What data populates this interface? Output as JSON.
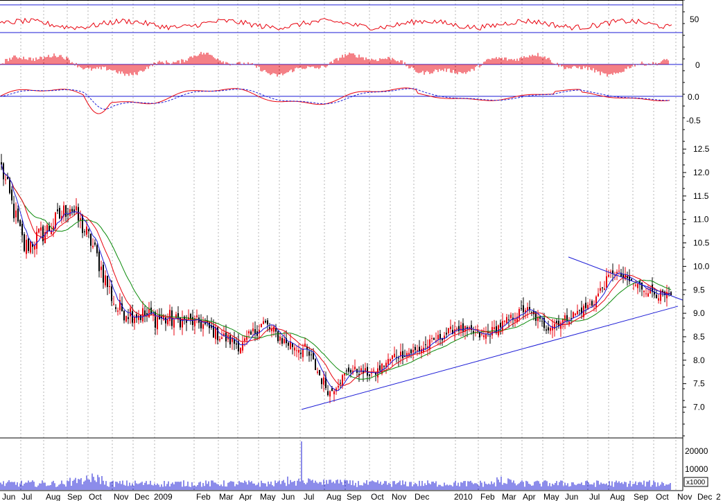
{
  "chart_data": {
    "type": "candlestick",
    "grid": true,
    "colors": {
      "up_candle": "#e8000c",
      "down_candle": "#000000",
      "ma_short": "#1a1ad6",
      "ma_mid": "#e8000c",
      "ma_long": "#0a8a0a",
      "trendline": "#1a1ad6",
      "rsi_line": "#e8000c",
      "histogram": "#e8000c",
      "macd_line": "#e8000c",
      "signal_line": "#1a1ad6",
      "volume": "#1a1ad6",
      "grid": "#b4b4b4"
    },
    "x_labels": [
      "Jun",
      "Jul",
      "Aug",
      "Sep",
      "Oct",
      "Nov",
      "Dec",
      "2009",
      "Feb",
      "Mar",
      "Apr",
      "May",
      "Jun",
      "Jul",
      "Aug",
      "Sep",
      "Oct",
      "Nov",
      "Dec",
      "2010",
      "Feb",
      "Mar",
      "Apr",
      "May",
      "Jun",
      "Jul",
      "Aug",
      "Sep",
      "Oct",
      "Nov",
      "Dec",
      "2"
    ],
    "rsi_panel": {
      "tick_labels": [
        "50"
      ],
      "range": [
        0,
        100
      ],
      "guide_levels": [
        30,
        70
      ]
    },
    "histogram_panel": {
      "tick_labels": [
        "0"
      ]
    },
    "macd_panel": {
      "tick_labels": [
        "0.0",
        "-0.5"
      ],
      "range": [
        -0.7,
        0.3
      ]
    },
    "price_panel": {
      "tick_labels": [
        "12.5",
        "12.0",
        "11.5",
        "11.0",
        "10.5",
        "10.0",
        "9.5",
        "9.0",
        "8.5",
        "8.0",
        "7.5",
        "7.0"
      ],
      "ylim": [
        6.6,
        12.8
      ],
      "key_closes": [
        {
          "label": "Jun",
          "close": 12.1
        },
        {
          "label": "Jul",
          "close": 10.4
        },
        {
          "label": "Aug",
          "close": 10.8
        },
        {
          "label": "Sep",
          "close": 11.3
        },
        {
          "label": "Oct",
          "close": 10.5
        },
        {
          "label": "Nov",
          "close": 9.1
        },
        {
          "label": "Dec",
          "close": 9.0
        },
        {
          "label": "2009",
          "close": 8.9
        },
        {
          "label": "Feb",
          "close": 8.8
        },
        {
          "label": "Mar",
          "close": 8.5
        },
        {
          "label": "Apr",
          "close": 8.3
        },
        {
          "label": "May",
          "close": 8.8
        },
        {
          "label": "Jun",
          "close": 8.4
        },
        {
          "label": "Jul",
          "close": 8.2
        },
        {
          "label": "Aug",
          "close": 7.3
        },
        {
          "label": "Sep",
          "close": 7.8
        },
        {
          "label": "Oct",
          "close": 7.7
        },
        {
          "label": "Nov",
          "close": 8.1
        },
        {
          "label": "Dec",
          "close": 8.2
        },
        {
          "label": "2010",
          "close": 8.7
        },
        {
          "label": "Feb",
          "close": 8.5
        },
        {
          "label": "Mar",
          "close": 8.8
        },
        {
          "label": "Apr",
          "close": 9.1
        },
        {
          "label": "May",
          "close": 8.7
        },
        {
          "label": "Jun",
          "close": 8.9
        },
        {
          "label": "Jul",
          "close": 9.2
        },
        {
          "label": "Aug",
          "close": 9.9
        },
        {
          "label": "Sep",
          "close": 9.6
        },
        {
          "label": "Oct",
          "close": 9.4
        },
        {
          "label": "Nov",
          "close": 9.3
        },
        {
          "label": "Dec",
          "close": 9.25
        }
      ],
      "trendlines": [
        {
          "name": "support",
          "from": {
            "x": "Jul 2009",
            "y": 6.95
          },
          "to": {
            "x": "Dec 2010",
            "y": 9.15
          }
        },
        {
          "name": "resistance",
          "from": {
            "x": "Jul 2010",
            "y": 10.2
          },
          "to": {
            "x": "Dec 2010",
            "y": 9.3
          }
        }
      ]
    },
    "volume_panel": {
      "tick_labels": [
        "20000",
        "10000"
      ],
      "unit_label": "x1000",
      "ylim": [
        0,
        27000
      ],
      "peak": {
        "label": "Jul 2009",
        "value": 25000
      }
    }
  }
}
